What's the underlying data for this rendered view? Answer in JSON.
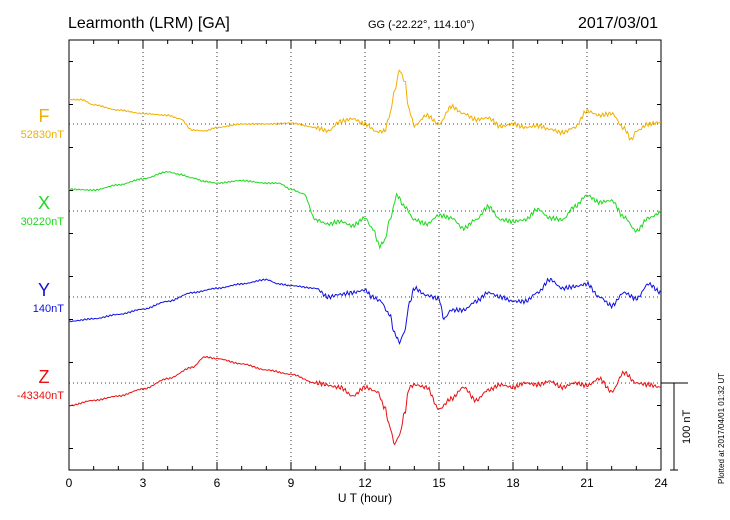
{
  "header": {
    "station": "Learmonth (LRM)  [GA]",
    "coords": "GG (-22.22°, 114.10°)",
    "date": "2017/03/01"
  },
  "xaxis": {
    "label": "U T (hour)",
    "ticks": [
      "0",
      "3",
      "6",
      "9",
      "12",
      "15",
      "18",
      "21",
      "24"
    ],
    "range": [
      0,
      24
    ]
  },
  "scale_bar": {
    "label": "100 nT",
    "value_nT": 100
  },
  "plotted_note": "Plotted at 2017/04/01 01:32 UT",
  "chart_data": {
    "type": "line",
    "xlabel": "U T (hour)",
    "xlim": [
      0,
      24
    ],
    "grid": true,
    "series": [
      {
        "name": "F",
        "baseline": "52830nT",
        "baseline_value": 52830,
        "color": "#f0b000",
        "x": [
          0,
          0.5,
          1,
          2,
          3,
          4,
          4.5,
          5,
          5.5,
          6,
          7,
          8,
          9,
          10,
          10.5,
          11,
          11.5,
          12,
          12.5,
          12.8,
          13,
          13.2,
          13.4,
          13.6,
          13.8,
          14,
          14.5,
          15,
          15.5,
          16,
          16.5,
          17,
          17.5,
          18,
          18.5,
          19,
          19.5,
          20,
          20.5,
          21,
          21.5,
          22,
          22.5,
          22.8,
          23,
          23.5,
          24
        ],
        "values": [
          52858,
          52858,
          52852,
          52846,
          52842,
          52840,
          52836,
          52823,
          52822,
          52826,
          52830,
          52830,
          52831,
          52826,
          52822,
          52833,
          52836,
          52830,
          52821,
          52822,
          52840,
          52868,
          52892,
          52880,
          52845,
          52828,
          52840,
          52830,
          52850,
          52842,
          52835,
          52837,
          52827,
          52830,
          52826,
          52828,
          52824,
          52820,
          52826,
          52845,
          52840,
          52842,
          52825,
          52812,
          52822,
          52830,
          52832
        ]
      },
      {
        "name": "X",
        "baseline": "30220nT",
        "baseline_value": 30220,
        "color": "#1ed81e",
        "x": [
          0,
          1,
          2,
          3,
          4,
          4.5,
          5,
          5.5,
          6,
          7,
          8,
          8.5,
          9,
          9.5,
          10,
          10.5,
          11,
          11.5,
          12,
          12.3,
          12.6,
          12.8,
          13,
          13.3,
          13.6,
          14,
          14.5,
          15,
          15.5,
          16,
          16.5,
          17,
          17.5,
          18,
          18.5,
          19,
          19.5,
          20,
          20.5,
          21,
          21.5,
          22,
          22.5,
          23,
          23.5,
          24
        ],
        "values": [
          30245,
          30244,
          30250,
          30257,
          30265,
          30262,
          30258,
          30254,
          30252,
          30255,
          30252,
          30252,
          30245,
          30240,
          30210,
          30205,
          30208,
          30203,
          30212,
          30200,
          30180,
          30186,
          30210,
          30238,
          30225,
          30210,
          30205,
          30215,
          30212,
          30200,
          30210,
          30225,
          30210,
          30208,
          30210,
          30222,
          30212,
          30210,
          30225,
          30238,
          30230,
          30232,
          30213,
          30197,
          30212,
          30218
        ]
      },
      {
        "name": "Y",
        "baseline": "140nT",
        "baseline_value": 140,
        "color": "#1010e0",
        "x": [
          0,
          1,
          2,
          3,
          4,
          5,
          6,
          7,
          8,
          8.5,
          9,
          10,
          10.5,
          11,
          11.5,
          12,
          12.3,
          12.6,
          13,
          13.2,
          13.4,
          13.6,
          13.8,
          14,
          14.5,
          15,
          15.2,
          15.5,
          16,
          16.5,
          17,
          17.5,
          18,
          18.5,
          19,
          19.5,
          20,
          20.5,
          21,
          21.5,
          22,
          22.5,
          23,
          23.5,
          24
        ],
        "values": [
          112,
          115,
          120,
          126,
          135,
          145,
          150,
          155,
          160,
          155,
          153,
          150,
          140,
          143,
          145,
          148,
          140,
          136,
          120,
          98,
          88,
          100,
          133,
          150,
          142,
          138,
          115,
          125,
          125,
          135,
          145,
          140,
          135,
          135,
          145,
          160,
          150,
          152,
          155,
          140,
          130,
          145,
          138,
          155,
          145
        ]
      },
      {
        "name": "Z",
        "baseline": "-43340nT",
        "baseline_value": -43340,
        "color": "#e81010",
        "x": [
          0,
          1,
          2,
          3,
          4,
          5,
          5.5,
          6,
          7,
          8,
          9,
          10,
          11,
          11.5,
          12,
          12.5,
          12.8,
          13,
          13.2,
          13.4,
          13.6,
          13.8,
          14,
          14.5,
          15,
          15.5,
          16,
          16.5,
          17,
          17.5,
          18,
          18.5,
          19,
          19.5,
          20,
          20.5,
          21,
          21.5,
          22,
          22.5,
          23,
          23.5,
          24
        ],
        "values": [
          -43366,
          -43360,
          -43355,
          -43347,
          -43335,
          -43322,
          -43310,
          -43312,
          -43318,
          -43325,
          -43330,
          -43340,
          -43345,
          -43355,
          -43345,
          -43350,
          -43368,
          -43390,
          -43410,
          -43400,
          -43375,
          -43345,
          -43342,
          -43345,
          -43370,
          -43358,
          -43345,
          -43360,
          -43348,
          -43342,
          -43345,
          -43340,
          -43342,
          -43338,
          -43345,
          -43340,
          -43343,
          -43335,
          -43350,
          -43328,
          -43340,
          -43342,
          -43345
        ]
      }
    ]
  }
}
